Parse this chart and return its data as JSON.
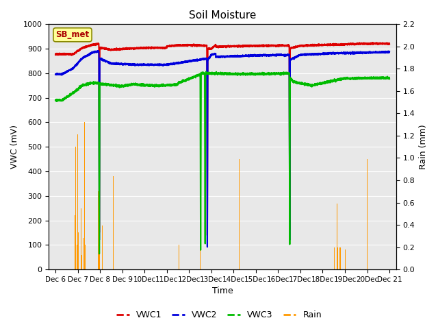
{
  "title": "Soil Moisture",
  "xlabel": "Time",
  "ylabel_left": "VWC (mV)",
  "ylabel_right": "Rain (mm)",
  "ylim_left": [
    0,
    1000
  ],
  "ylim_right": [
    0.0,
    2.2
  ],
  "yticks_left": [
    0,
    100,
    200,
    300,
    400,
    500,
    600,
    700,
    800,
    900,
    1000
  ],
  "yticks_right": [
    0.0,
    0.2,
    0.4,
    0.6,
    0.8,
    1.0,
    1.2,
    1.4,
    1.6,
    1.8,
    2.0,
    2.2
  ],
  "station_label": "SB_met",
  "bg_color": "#e8e8e8",
  "vwc1_color": "#dd0000",
  "vwc2_color": "#0000dd",
  "vwc3_color": "#00bb00",
  "rain_color": "#ff9900",
  "x_labels": [
    "Dec 6",
    "Dec 7",
    "Dec 8",
    "Dec 9",
    "10Dec",
    "11Dec",
    "12Dec",
    "13Dec",
    "14Dec",
    "15Dec",
    "16Dec",
    "17Dec",
    "18Dec",
    "19Dec",
    "20Dec",
    "Dec 21"
  ],
  "num_points": 4000,
  "vwc1_base": 880,
  "vwc2_base": 800,
  "vwc3_base": 690
}
